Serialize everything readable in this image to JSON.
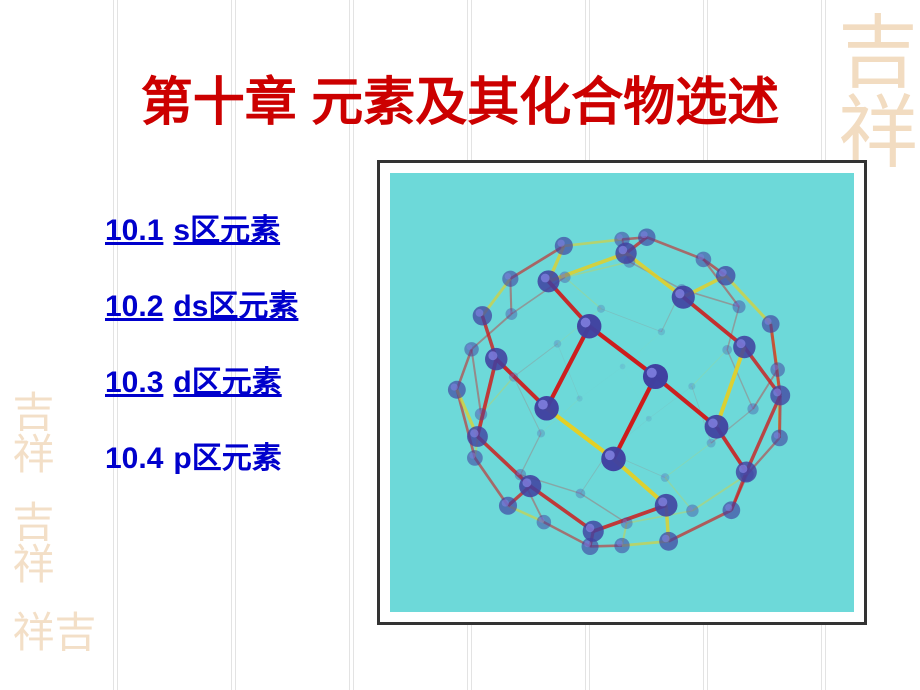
{
  "title": "第十章  元素及其化合物选述",
  "toc": [
    {
      "num": "10.1",
      "label": "s区元素",
      "underline": true
    },
    {
      "num": "10.2",
      "label": "ds区元素",
      "underline": true
    },
    {
      "num": "10.3",
      "label": "d区元素",
      "underline": true
    },
    {
      "num": "10.4",
      "label": "p区元素",
      "underline": false
    }
  ],
  "colors": {
    "title": "#cc0000",
    "link": "#0000cc",
    "molecule_bg": "#6dd9d9",
    "atom": "#4040a0",
    "atom_highlight": "#8080e0",
    "bond_red": "#d01818",
    "bond_yellow": "#e8d020",
    "frame_border": "#333333",
    "seal": "#e8c090"
  },
  "seal_text": "吉祥",
  "molecule": {
    "type": "fullerene-like",
    "atom_radius": 11,
    "bond_width": 4
  }
}
